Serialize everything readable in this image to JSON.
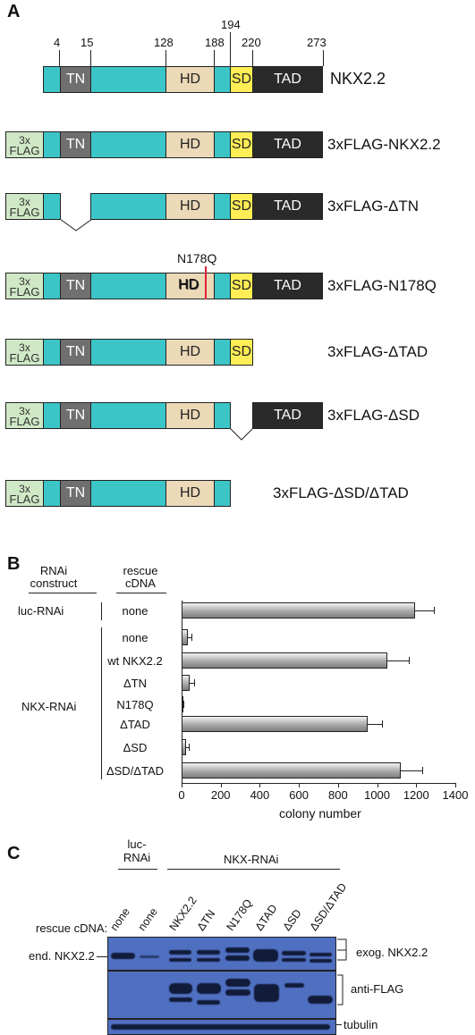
{
  "panel_a": {
    "letter": "A",
    "positions": [
      "4",
      "15",
      "128",
      "188",
      "194",
      "220",
      "273"
    ],
    "constructs": [
      {
        "name": "NKX2.2"
      },
      {
        "name": "3xFLAG-NKX2.2"
      },
      {
        "name": "3xFLAG-ΔTN"
      },
      {
        "name": "3xFLAG-N178Q",
        "mutation": "N178Q"
      },
      {
        "name": "3xFLAG-ΔTAD"
      },
      {
        "name": "3xFLAG-ΔSD"
      },
      {
        "name": "3xFLAG-ΔSD/ΔTAD"
      }
    ],
    "domains": {
      "flag_top": "3x",
      "flag_bottom": "FLAG",
      "tn": "TN",
      "hd": "HD",
      "sd": "SD",
      "tad": "TAD"
    },
    "colors": {
      "flag": "#cfe8c6",
      "linker": "#3cc5c6",
      "tn": "#6f6f6f",
      "hd": "#ecd9b8",
      "sd": "#ffee55",
      "tad": "#2a2a2a",
      "mutation": "#e0203a"
    }
  },
  "panel_b": {
    "letter": "B",
    "col1_header": "RNAi construct",
    "col2_header": "rescue cDNA",
    "chart_data": {
      "type": "bar",
      "orientation": "horizontal",
      "categories": [
        "none",
        "none",
        "wt NKX2.2",
        "ΔTN",
        "N178Q",
        "ΔTAD",
        "ΔSD",
        "ΔSD/ΔTAD"
      ],
      "rnai_groups": [
        {
          "label": "luc-RNAi",
          "rows": [
            0
          ]
        },
        {
          "label": "NKX-RNAi",
          "rows": [
            1,
            2,
            3,
            4,
            5,
            6,
            7
          ]
        }
      ],
      "values": [
        1195,
        30,
        1050,
        40,
        5,
        950,
        25,
        1120
      ],
      "errors": [
        95,
        20,
        110,
        25,
        5,
        75,
        10,
        110
      ],
      "xlabel": "colony number",
      "xticks": [
        "0",
        "200",
        "400",
        "600",
        "800",
        "1000",
        "1200",
        "1400"
      ],
      "xlim": [
        0,
        1400
      ]
    }
  },
  "panel_c": {
    "letter": "C",
    "group_luc": "luc-RNAi",
    "group_nkx": "NKX-RNAi",
    "rescue_label": "rescue cDNA:",
    "lanes": [
      "none",
      "none",
      "NKX2.2",
      "ΔTN",
      "N178Q",
      "ΔTAD",
      "ΔSD",
      "ΔSD/ΔTAD"
    ],
    "left_label": "end. NKX2.2",
    "right_labels": {
      "exog": "exog. NKX2.2",
      "flag": "anti-FLAG",
      "tubulin": "tubulin"
    },
    "blot_color": "#4f6fc1"
  }
}
